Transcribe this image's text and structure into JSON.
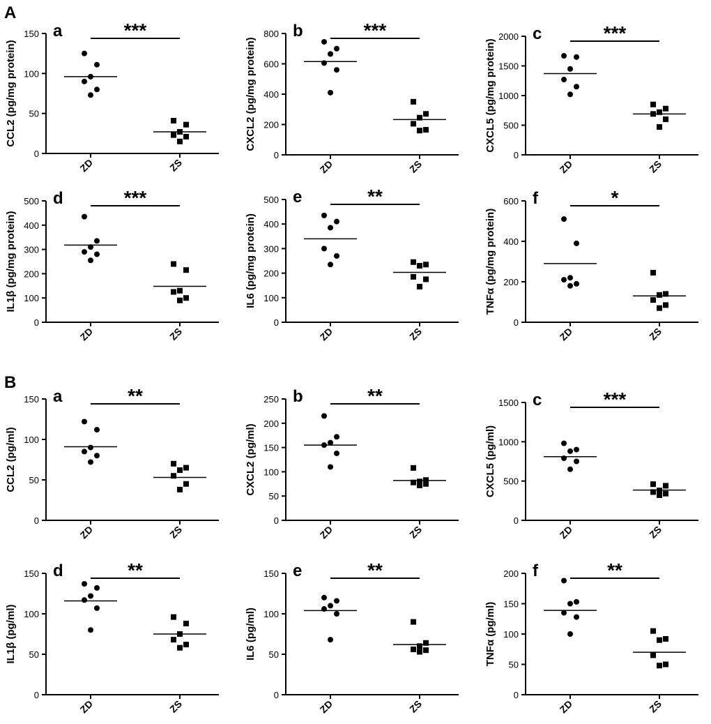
{
  "figure": {
    "section_labels": [
      "A",
      "B"
    ]
  },
  "chart_data": [
    {
      "id": "A-a",
      "type": "scatter",
      "section": "A",
      "letter": "a",
      "ylabel": "CCL2 (pg/mg protein)",
      "ylim": [
        0,
        150
      ],
      "yticks": [
        0,
        50,
        100,
        150
      ],
      "categories": [
        "ZD",
        "ZS"
      ],
      "series": [
        {
          "name": "ZD",
          "marker": "circle",
          "values": [
            125,
            111,
            96,
            90,
            80,
            73
          ],
          "mean": 96
        },
        {
          "name": "ZS",
          "marker": "square",
          "values": [
            41,
            36,
            27,
            23,
            21,
            15
          ],
          "mean": 27
        }
      ],
      "significance": "***"
    },
    {
      "id": "A-b",
      "type": "scatter",
      "section": "A",
      "letter": "b",
      "ylabel": "CXCL2 (pg/mg protein)",
      "ylim": [
        0,
        800
      ],
      "yticks": [
        0,
        200,
        400,
        600,
        800
      ],
      "categories": [
        "ZD",
        "ZS"
      ],
      "series": [
        {
          "name": "ZD",
          "marker": "circle",
          "values": [
            745,
            700,
            665,
            605,
            560,
            410
          ],
          "mean": 615
        },
        {
          "name": "ZS",
          "marker": "square",
          "values": [
            350,
            270,
            245,
            205,
            165,
            160
          ],
          "mean": 233
        },
        {
          "name": "_",
          "marker": "none",
          "values": [],
          "mean": null
        }
      ],
      "significance": "***"
    },
    {
      "id": "A-c",
      "type": "scatter",
      "section": "A",
      "letter": "c",
      "ylabel": "CXCL5 (pg/mg protein)",
      "ylim": [
        0,
        2000
      ],
      "yticks": [
        0,
        500,
        1000,
        1500,
        2000
      ],
      "categories": [
        "ZD",
        "ZS"
      ],
      "series": [
        {
          "name": "ZD",
          "marker": "circle",
          "values": [
            1670,
            1650,
            1450,
            1270,
            1150,
            1020
          ],
          "mean": 1370
        },
        {
          "name": "ZS",
          "marker": "square",
          "values": [
            850,
            780,
            720,
            690,
            600,
            470
          ],
          "mean": 690
        }
      ],
      "significance": "***"
    },
    {
      "id": "A-d",
      "type": "scatter",
      "section": "A",
      "letter": "d",
      "ylabel": "IL1β (pg/mg protein)",
      "ylim": [
        0,
        500
      ],
      "yticks": [
        0,
        100,
        200,
        300,
        400,
        500
      ],
      "categories": [
        "ZD",
        "ZS"
      ],
      "series": [
        {
          "name": "ZD",
          "marker": "circle",
          "values": [
            435,
            335,
            310,
            290,
            280,
            255
          ],
          "mean": 318
        },
        {
          "name": "ZS",
          "marker": "square",
          "values": [
            240,
            215,
            130,
            125,
            100,
            90
          ],
          "mean": 148
        }
      ],
      "significance": "***"
    },
    {
      "id": "A-e",
      "type": "scatter",
      "section": "A",
      "letter": "e",
      "ylabel": "IL6 (pg/mg protein)",
      "ylim": [
        0,
        500
      ],
      "yticks": [
        0,
        100,
        200,
        300,
        400,
        500
      ],
      "categories": [
        "ZD",
        "ZS"
      ],
      "series": [
        {
          "name": "ZD",
          "marker": "circle",
          "values": [
            435,
            410,
            385,
            300,
            270,
            235
          ],
          "mean": 340
        },
        {
          "name": "ZS",
          "marker": "square",
          "values": [
            245,
            235,
            230,
            185,
            175,
            145
          ],
          "mean": 203
        }
      ],
      "significance": "**"
    },
    {
      "id": "A-f",
      "type": "scatter",
      "section": "A",
      "letter": "f",
      "ylabel": "TNFα (pg/mg protein)",
      "ylim": [
        0,
        600
      ],
      "yticks": [
        0,
        200,
        400,
        600
      ],
      "categories": [
        "ZD",
        "ZS"
      ],
      "series": [
        {
          "name": "ZD",
          "marker": "circle",
          "values": [
            510,
            390,
            220,
            210,
            190,
            180
          ],
          "mean": 290
        },
        {
          "name": "ZS",
          "marker": "square",
          "values": [
            245,
            140,
            135,
            110,
            85,
            70
          ],
          "mean": 130
        }
      ],
      "significance": "*"
    },
    {
      "id": "B-a",
      "type": "scatter",
      "section": "B",
      "letter": "a",
      "ylabel": "CCL2 (pg/ml)",
      "ylim": [
        0,
        150
      ],
      "yticks": [
        0,
        50,
        100,
        150
      ],
      "categories": [
        "ZD",
        "ZS"
      ],
      "series": [
        {
          "name": "ZD",
          "marker": "circle",
          "values": [
            122,
            112,
            90,
            85,
            80,
            72
          ],
          "mean": 91
        },
        {
          "name": "ZS",
          "marker": "square",
          "values": [
            70,
            65,
            62,
            55,
            45,
            38
          ],
          "mean": 53
        }
      ],
      "significance": "**"
    },
    {
      "id": "B-b",
      "type": "scatter",
      "section": "B",
      "letter": "b",
      "ylabel": "CXCL2 (pg/ml)",
      "ylim": [
        0,
        250
      ],
      "yticks": [
        0,
        50,
        100,
        150,
        200,
        250
      ],
      "categories": [
        "ZD",
        "ZS"
      ],
      "series": [
        {
          "name": "ZD",
          "marker": "circle",
          "values": [
            215,
            172,
            160,
            155,
            138,
            110
          ],
          "mean": 155
        },
        {
          "name": "ZS",
          "marker": "square",
          "values": [
            108,
            83,
            80,
            78,
            75,
            72
          ],
          "mean": 82
        }
      ],
      "significance": "**"
    },
    {
      "id": "B-c",
      "type": "scatter",
      "section": "B",
      "letter": "c",
      "ylabel": "CXCL5 (pg/ml)",
      "ylim": [
        0,
        1500
      ],
      "yticks": [
        0,
        500,
        1000,
        1500
      ],
      "categories": [
        "ZD",
        "ZS"
      ],
      "series": [
        {
          "name": "ZD",
          "marker": "circle",
          "values": [
            980,
            900,
            880,
            790,
            750,
            650
          ],
          "mean": 810
        },
        {
          "name": "ZS",
          "marker": "square",
          "values": [
            460,
            440,
            380,
            360,
            340,
            320
          ],
          "mean": 385
        }
      ],
      "significance": "***"
    },
    {
      "id": "B-d",
      "type": "scatter",
      "section": "B",
      "letter": "d",
      "ylabel": "IL1β (pg/ml)",
      "ylim": [
        0,
        150
      ],
      "yticks": [
        0,
        50,
        100,
        150
      ],
      "categories": [
        "ZD",
        "ZS"
      ],
      "series": [
        {
          "name": "ZD",
          "marker": "circle",
          "values": [
            137,
            132,
            122,
            117,
            107,
            80
          ],
          "mean": 116
        },
        {
          "name": "ZS",
          "marker": "square",
          "values": [
            96,
            88,
            75,
            68,
            62,
            58
          ],
          "mean": 75
        }
      ],
      "significance": "**"
    },
    {
      "id": "B-e",
      "type": "scatter",
      "section": "B",
      "letter": "e",
      "ylabel": "IL6 (pg/ml)",
      "ylim": [
        0,
        150
      ],
      "yticks": [
        0,
        50,
        100,
        150
      ],
      "categories": [
        "ZD",
        "ZS"
      ],
      "series": [
        {
          "name": "ZD",
          "marker": "circle",
          "values": [
            120,
            116,
            110,
            106,
            100,
            68
          ],
          "mean": 104
        },
        {
          "name": "ZS",
          "marker": "square",
          "values": [
            90,
            64,
            60,
            56,
            55,
            53
          ],
          "mean": 62
        }
      ],
      "significance": "**"
    },
    {
      "id": "B-f",
      "type": "scatter",
      "section": "B",
      "letter": "f",
      "ylabel": "TNFα (pg/ml)",
      "ylim": [
        0,
        200
      ],
      "yticks": [
        0,
        50,
        100,
        150,
        200
      ],
      "categories": [
        "ZD",
        "ZS"
      ],
      "series": [
        {
          "name": "ZD",
          "marker": "circle",
          "values": [
            188,
            153,
            150,
            135,
            128,
            100
          ],
          "mean": 139
        },
        {
          "name": "ZS",
          "marker": "square",
          "values": [
            105,
            92,
            90,
            65,
            50,
            48
          ],
          "mean": 70
        }
      ],
      "significance": "**"
    }
  ]
}
